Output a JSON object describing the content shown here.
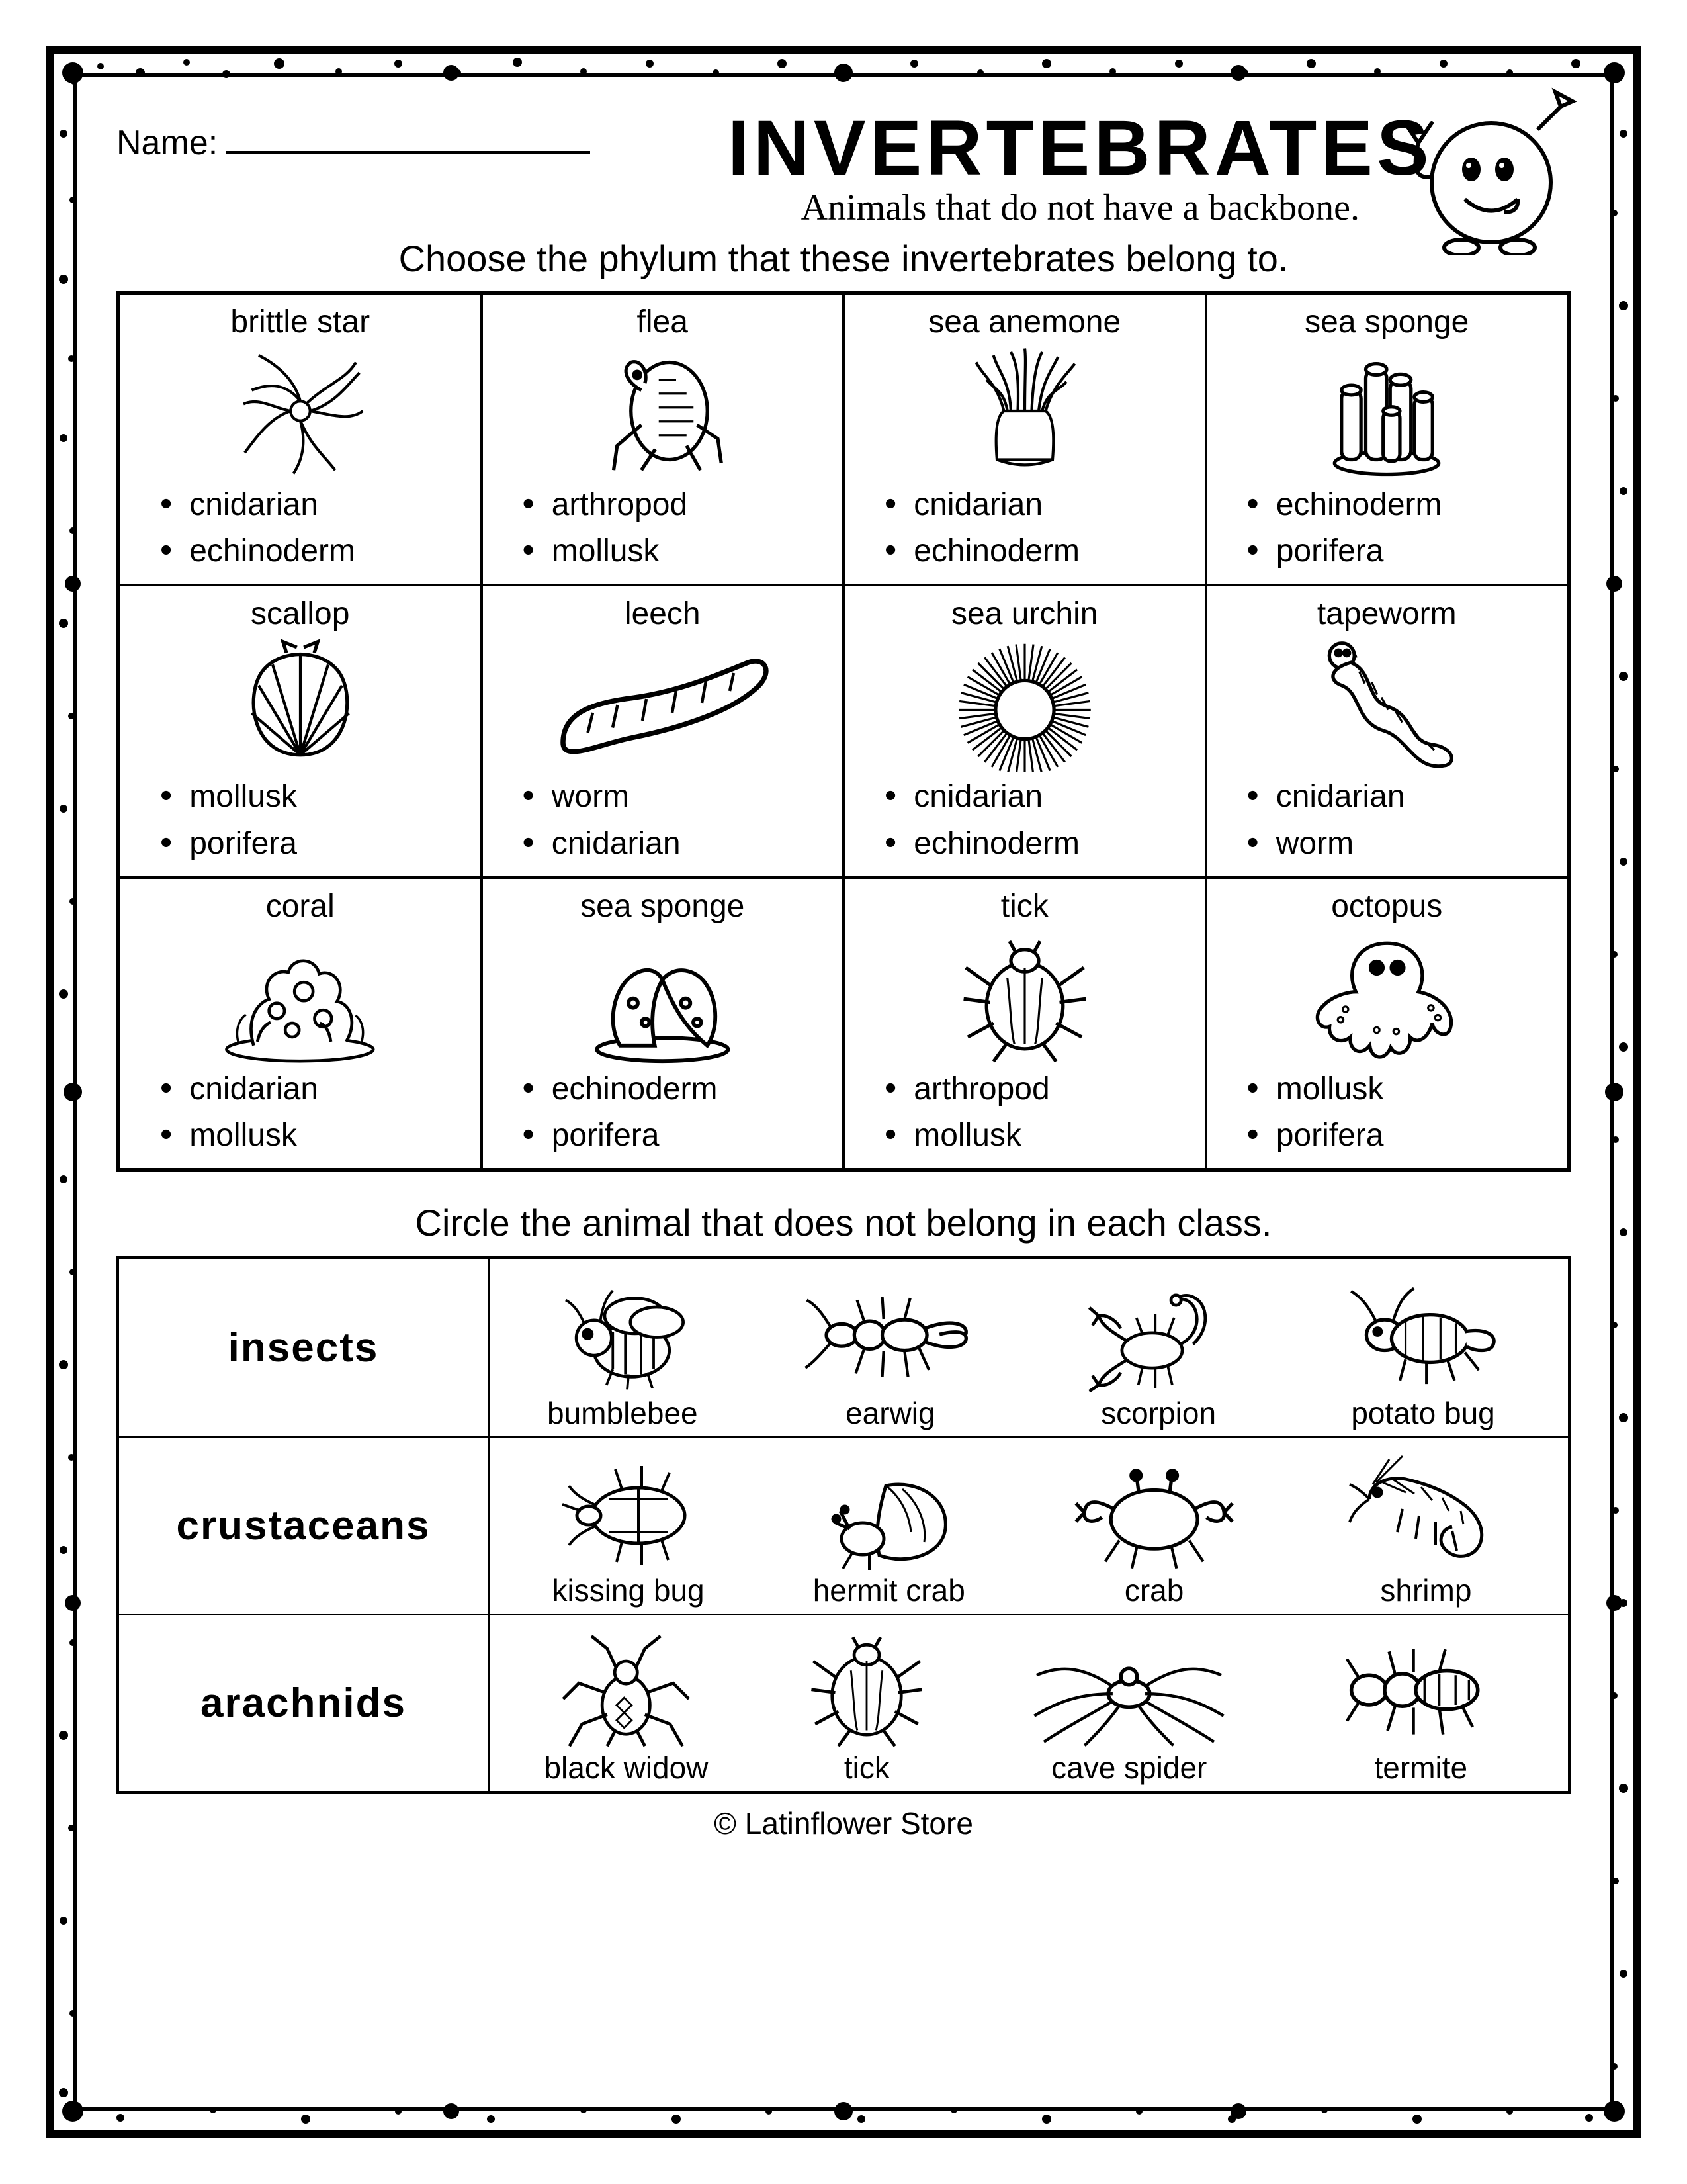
{
  "page": {
    "name_label": "Name:",
    "title": "INVERTEBRATES",
    "subtitle": "Animals that do not have a backbone.",
    "instruction1": "Choose the phylum that these invertebrates belong to.",
    "instruction2": "Circle the animal that does not belong in each class.",
    "footer": "© Latinflower Store",
    "colors": {
      "fg": "#000000",
      "bg": "#ffffff"
    }
  },
  "grid1": [
    {
      "label": "brittle star",
      "opts": [
        "cnidarian",
        "echinoderm"
      ]
    },
    {
      "label": "flea",
      "opts": [
        "arthropod",
        "mollusk"
      ]
    },
    {
      "label": "sea anemone",
      "opts": [
        "cnidarian",
        "echinoderm"
      ]
    },
    {
      "label": "sea sponge",
      "opts": [
        "echinoderm",
        "porifera"
      ]
    },
    {
      "label": "scallop",
      "opts": [
        "mollusk",
        "porifera"
      ]
    },
    {
      "label": "leech",
      "opts": [
        "worm",
        "cnidarian"
      ]
    },
    {
      "label": "sea urchin",
      "opts": [
        "cnidarian",
        "echinoderm"
      ]
    },
    {
      "label": "tapeworm",
      "opts": [
        "cnidarian",
        "worm"
      ]
    },
    {
      "label": "coral",
      "opts": [
        "cnidarian",
        "mollusk"
      ]
    },
    {
      "label": "sea sponge",
      "opts": [
        "echinoderm",
        "porifera"
      ]
    },
    {
      "label": "tick",
      "opts": [
        "arthropod",
        "mollusk"
      ]
    },
    {
      "label": "octopus",
      "opts": [
        "mollusk",
        "porifera"
      ]
    }
  ],
  "grid2": [
    {
      "class": "insects",
      "animals": [
        "bumblebee",
        "earwig",
        "scorpion",
        "potato bug"
      ]
    },
    {
      "class": "crustaceans",
      "animals": [
        "kissing bug",
        "hermit crab",
        "crab",
        "shrimp"
      ]
    },
    {
      "class": "arachnids",
      "animals": [
        "black widow",
        "tick",
        "cave spider",
        "termite"
      ]
    }
  ]
}
